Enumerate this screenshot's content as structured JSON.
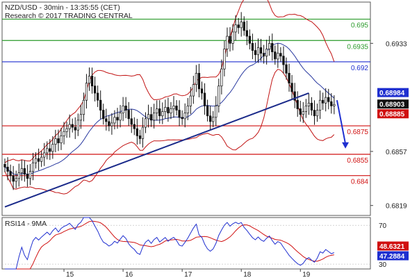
{
  "chart_data": {
    "type": "candlestick",
    "header": {
      "line1": "NZD/USD - 30min - 13:35:55 (CET)",
      "line2": "Research © 2017 TRADING CENTRAL"
    },
    "price_axis": {
      "ylim": [
        0.6812,
        0.6962
      ],
      "ticks": [
        "0.6933",
        "0.6857",
        "0.6819"
      ],
      "tick_values": [
        0.6933,
        0.6857,
        0.6819
      ]
    },
    "x_axis": {
      "labels": [
        "15",
        "16",
        "17",
        "18",
        "19"
      ],
      "label_bars": [
        21,
        42,
        63,
        84,
        105
      ]
    },
    "levels": [
      {
        "label": "0.695",
        "value": 0.695,
        "color": "#2a9a2a"
      },
      {
        "label": "0.6935",
        "value": 0.6935,
        "color": "#2a9a2a"
      },
      {
        "label": "0.692",
        "value": 0.692,
        "color": "#1f2fd0"
      },
      {
        "label": "0.6875",
        "value": 0.6875,
        "color": "#d01010"
      },
      {
        "label": "0.6855",
        "value": 0.6855,
        "color": "#d01010"
      },
      {
        "label": "0.684",
        "value": 0.684,
        "color": "#d01010"
      }
    ],
    "price_badges": [
      {
        "label": "0.68984",
        "value": 0.68984,
        "color": "#1f2fd0"
      },
      {
        "label": "0.68903",
        "value": 0.68903,
        "color": "#111111"
      },
      {
        "label": "0.68885",
        "value": 0.68885,
        "color": "#d01010"
      }
    ],
    "trendline": {
      "from": [
        0,
        0.6818
      ],
      "to": [
        108,
        0.6898
      ],
      "color": "#1a2a8a"
    },
    "forecast_arrow": {
      "from": [
        118,
        0.6893
      ],
      "to": [
        121,
        0.6859
      ],
      "color": "#1f2fd0"
    },
    "closes": [
      0.6846,
      0.6843,
      0.684,
      0.6836,
      0.6838,
      0.6842,
      0.6845,
      0.6841,
      0.6838,
      0.6843,
      0.6849,
      0.6852,
      0.685,
      0.6853,
      0.6856,
      0.6859,
      0.6857,
      0.6862,
      0.6866,
      0.6863,
      0.6868,
      0.6871,
      0.6873,
      0.6876,
      0.6874,
      0.6872,
      0.6879,
      0.6883,
      0.6893,
      0.6905,
      0.691,
      0.6903,
      0.6898,
      0.6893,
      0.6886,
      0.688,
      0.6878,
      0.6875,
      0.6877,
      0.6881,
      0.6879,
      0.6884,
      0.6889,
      0.6886,
      0.688,
      0.6876,
      0.6873,
      0.6868,
      0.6866,
      0.6874,
      0.688,
      0.6883,
      0.6879,
      0.6884,
      0.6887,
      0.6882,
      0.6885,
      0.6888,
      0.6884,
      0.6887,
      0.6889,
      0.6886,
      0.6881,
      0.688,
      0.6884,
      0.6889,
      0.6896,
      0.6904,
      0.6912,
      0.6901,
      0.6898,
      0.6889,
      0.6882,
      0.6878,
      0.6881,
      0.6889,
      0.6903,
      0.6915,
      0.6929,
      0.6938,
      0.6933,
      0.6941,
      0.6946,
      0.6944,
      0.6948,
      0.6942,
      0.6938,
      0.6933,
      0.6928,
      0.6925,
      0.693,
      0.6926,
      0.6924,
      0.6929,
      0.6933,
      0.6927,
      0.6922,
      0.6926,
      0.6924,
      0.6918,
      0.6912,
      0.6905,
      0.6899,
      0.6893,
      0.6887,
      0.6883,
      0.6885,
      0.6889,
      0.6891,
      0.6886,
      0.6882,
      0.6886,
      0.6893,
      0.6891,
      0.6895,
      0.6892,
      0.6889,
      0.689
    ],
    "rsi": {
      "label": "RSI14 - 9MA",
      "ylim": [
        25,
        78
      ],
      "ticks": [
        "70",
        "30"
      ],
      "tick_values": [
        70,
        30
      ],
      "badges": [
        {
          "label": "48.6321",
          "value": 48.6321,
          "color": "#d01010"
        },
        {
          "label": "47.2884",
          "value": 47.2884,
          "color": "#1f2fd0"
        }
      ]
    }
  }
}
